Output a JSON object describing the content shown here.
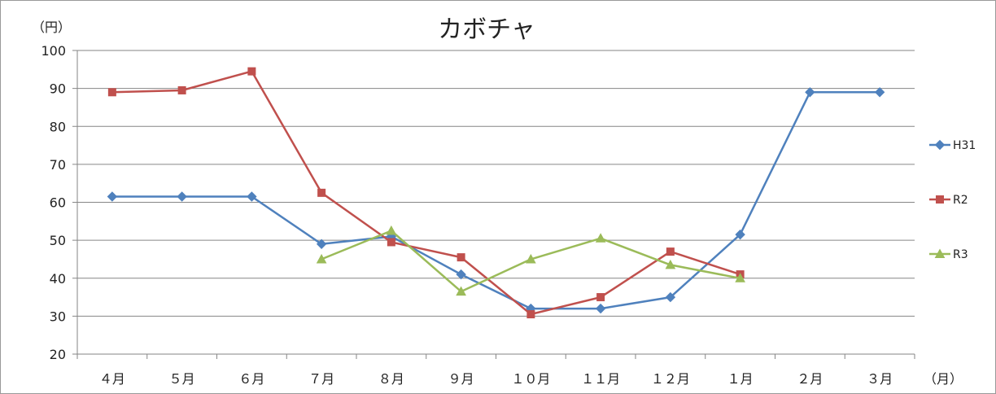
{
  "chart_data": {
    "type": "line",
    "title": "カボチャ",
    "ylabel": "（円）",
    "xlabel": "（月）",
    "categories": [
      "４月",
      "５月",
      "６月",
      "７月",
      "８月",
      "９月",
      "１０月",
      "１１月",
      "１２月",
      "１月",
      "２月",
      "３月"
    ],
    "ylim": [
      20,
      100
    ],
    "yticks": [
      20,
      30,
      40,
      50,
      60,
      70,
      80,
      90,
      100
    ],
    "grid": true,
    "legend_position": "right",
    "series": [
      {
        "name": "H31",
        "color": "#4f81bd",
        "marker": "diamond",
        "values": [
          61.5,
          61.5,
          61.5,
          49,
          51,
          41,
          32,
          32,
          35,
          51.5,
          89,
          89
        ]
      },
      {
        "name": "R2",
        "color": "#c0504d",
        "marker": "square",
        "values": [
          89,
          89.5,
          94.5,
          62.5,
          49.5,
          45.5,
          30.5,
          35,
          47,
          41,
          null,
          null
        ]
      },
      {
        "name": "R3",
        "color": "#9bbb59",
        "marker": "triangle",
        "values": [
          null,
          null,
          null,
          45,
          52.5,
          36.5,
          45,
          50.5,
          43.5,
          40,
          null,
          null
        ]
      }
    ]
  }
}
